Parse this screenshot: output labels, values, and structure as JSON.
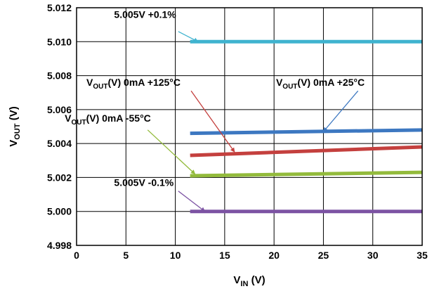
{
  "chart_data": {
    "type": "line",
    "xlabel_main": "V",
    "xlabel_sub": "IN",
    "xlabel_unit": " (V)",
    "ylabel_main": "V",
    "ylabel_sub": "OUT",
    "ylabel_unit": " (V)",
    "xlim": [
      0,
      35
    ],
    "ylim": [
      4.998,
      5.012
    ],
    "x_ticks": [
      0,
      5,
      10,
      15,
      20,
      25,
      30,
      35
    ],
    "x_tick_labels": [
      "0",
      "5",
      "10",
      "15",
      "20",
      "25",
      "30",
      "35"
    ],
    "y_ticks": [
      4.998,
      5.0,
      5.002,
      5.004,
      5.006,
      5.008,
      5.01,
      5.012
    ],
    "y_tick_labels": [
      "4.998",
      "5.000",
      "5.002",
      "5.004",
      "5.006",
      "5.008",
      "5.010",
      "5.012"
    ],
    "grid": true,
    "series": [
      {
        "name": "5.005V +0.1%",
        "color": "#3fb3cf",
        "x": [
          11.5,
          35
        ],
        "y": [
          5.01,
          5.01
        ]
      },
      {
        "name": "VOUT(V) 0mA +25°C",
        "color": "#3d78c1",
        "x": [
          11.5,
          35
        ],
        "y": [
          5.0046,
          5.0048
        ]
      },
      {
        "name": "VOUT(V) 0mA +125°C",
        "color": "#c4403e",
        "x": [
          11.5,
          35
        ],
        "y": [
          5.0033,
          5.0038
        ]
      },
      {
        "name": "VOUT(V) 0mA -55°C",
        "color": "#93bb3c",
        "x": [
          11.5,
          35
        ],
        "y": [
          5.0021,
          5.0023
        ]
      },
      {
        "name": "5.005V -0.1%",
        "color": "#7c53a3",
        "x": [
          11.5,
          35
        ],
        "y": [
          5.0,
          5.0
        ]
      }
    ],
    "annotations": [
      {
        "series": 0,
        "main": "5.005V +0.1%",
        "sub": "",
        "tail": "",
        "text_x": 3.8,
        "text_y": 5.0114,
        "arrow_from": [
          10.3,
          5.0106
        ],
        "arrow_to": [
          12.3,
          5.01
        ]
      },
      {
        "series": 1,
        "main": "V",
        "sub": "OUT",
        "tail": "(V) 0mA +25°C",
        "text_x": 20.2,
        "text_y": 5.0074,
        "arrow_from": [
          28.5,
          5.0071
        ],
        "arrow_to": [
          25.0,
          5.0047
        ]
      },
      {
        "series": 2,
        "main": "V",
        "sub": "OUT",
        "tail": "(V) 0mA +125°C",
        "text_x": 1.0,
        "text_y": 5.0074,
        "arrow_from": [
          11.6,
          5.0071
        ],
        "arrow_to": [
          16.0,
          5.0035
        ]
      },
      {
        "series": 3,
        "main": "V",
        "sub": "OUT",
        "tail": "(V) 0mA -55°C",
        "text_x": -1.2,
        "text_y": 5.0053,
        "arrow_from": [
          7.2,
          5.0048
        ],
        "arrow_to": [
          12.0,
          5.0022
        ]
      },
      {
        "series": 4,
        "main": "5.005V -0.1%",
        "sub": "",
        "tail": "",
        "text_x": 3.8,
        "text_y": 5.0015,
        "arrow_from": [
          10.3,
          5.0012
        ],
        "arrow_to": [
          13.0,
          5.0
        ]
      }
    ]
  }
}
